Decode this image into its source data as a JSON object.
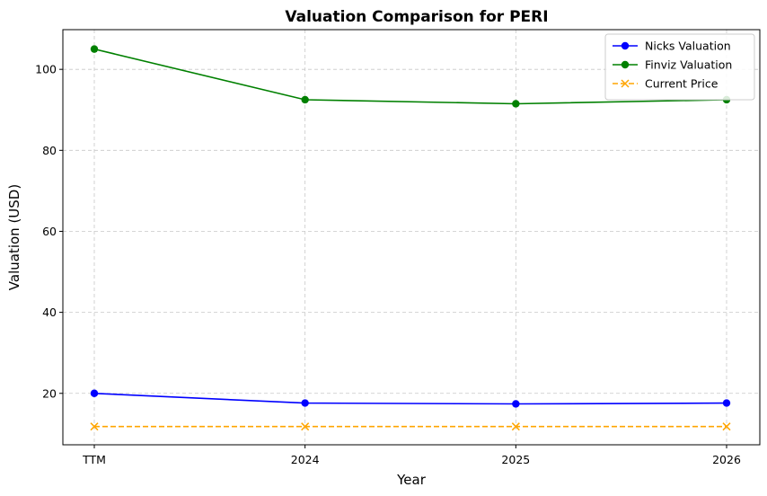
{
  "chart_data": {
    "type": "line",
    "title": "Valuation Comparison for PERI",
    "xlabel": "Year",
    "ylabel": "Valuation (USD)",
    "categories": [
      "TTM",
      "2024",
      "2025",
      "2026"
    ],
    "ylim": [
      7.3,
      109.8
    ],
    "yticks": [
      20,
      40,
      60,
      80,
      100
    ],
    "grid": true,
    "legend_position": "top-right",
    "series": [
      {
        "name": "Nicks Valuation",
        "values": [
          20.0,
          17.6,
          17.4,
          17.6
        ],
        "color": "#0000ff",
        "marker": "circle",
        "linestyle": "solid"
      },
      {
        "name": "Finviz Valuation",
        "values": [
          105.0,
          92.5,
          91.5,
          92.5
        ],
        "color": "#008000",
        "marker": "circle",
        "linestyle": "solid"
      },
      {
        "name": "Current Price",
        "values": [
          11.8,
          11.8,
          11.8,
          11.8
        ],
        "color": "#ffa500",
        "marker": "x",
        "linestyle": "dashed"
      }
    ]
  }
}
